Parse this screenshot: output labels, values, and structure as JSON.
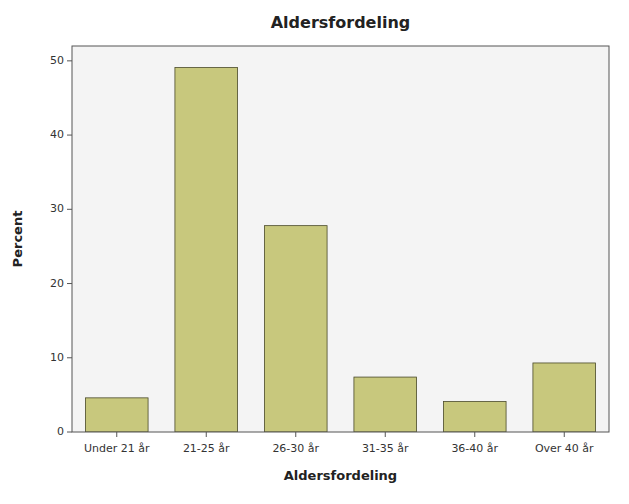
{
  "chart_data": {
    "type": "bar",
    "title": "Aldersfordeling",
    "xlabel": "Aldersfordeling",
    "ylabel": "Percent",
    "categories": [
      "Under 21 år",
      "21-25 år",
      "26-30 år",
      "31-35 år",
      "36-40 år",
      "Over 40 år"
    ],
    "values": [
      4.6,
      49.1,
      27.8,
      7.4,
      4.1,
      9.3
    ],
    "color": "#c8c87d",
    "ylim": [
      0,
      52
    ],
    "yticks": [
      0,
      10,
      20,
      30,
      40,
      50
    ],
    "grid": false
  }
}
